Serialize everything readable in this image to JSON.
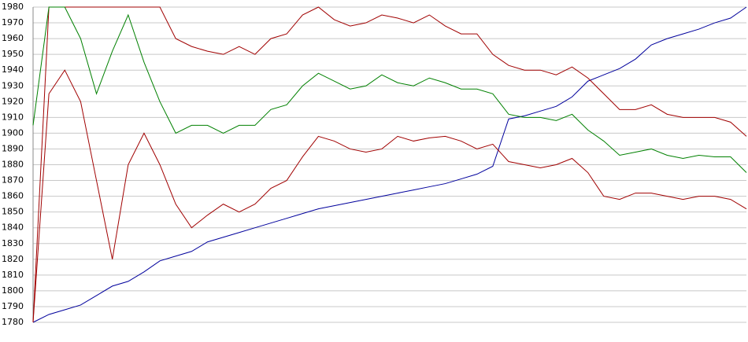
{
  "chart_data": {
    "type": "line",
    "categories": [
      null,
      null,
      null,
      null,
      null,
      null,
      null,
      null,
      null,
      null,
      null,
      null,
      null,
      null,
      null,
      null,
      null,
      null,
      null,
      null,
      null,
      null,
      null,
      null,
      null,
      null,
      null,
      null,
      null,
      null,
      null,
      null,
      null,
      null,
      null,
      null,
      null,
      null,
      null,
      null,
      null,
      null,
      null,
      null,
      null,
      null
    ],
    "series": [
      {
        "color": "#00009c",
        "values": [
          1780,
          1785,
          1788,
          1791,
          1797,
          1803,
          1806,
          1812,
          1819,
          1822,
          1825,
          1831,
          1834,
          1837,
          1840,
          1843,
          1846,
          1849,
          1852,
          1854,
          1856,
          1858,
          1860,
          1862,
          1864,
          1866,
          1868,
          1871,
          1874,
          1879,
          1909,
          1911,
          1914,
          1917,
          1923,
          1933,
          1937,
          1941,
          1947,
          1956,
          1960,
          1963,
          1966,
          1970,
          1973,
          1980
        ]
      },
      {
        "color": "#a00000",
        "values": [
          1780,
          1980,
          1980,
          1980,
          1980,
          1980,
          1980,
          1980,
          1980,
          1960,
          1955,
          1952,
          1950,
          1955,
          1950,
          1960,
          1963,
          1975,
          1980,
          1972,
          1968,
          1970,
          1975,
          1973,
          1970,
          1975,
          1968,
          1963,
          1963,
          1950,
          1943,
          1940,
          1940,
          1937,
          1942,
          1935,
          1925,
          1915,
          1915,
          1918,
          1912,
          1910,
          1910,
          1910,
          1907,
          1898
        ]
      },
      {
        "color": "#008000",
        "values": [
          1905,
          1980,
          1980,
          1960,
          1925,
          1952,
          1975,
          1945,
          1920,
          1900,
          1905,
          1905,
          1900,
          1905,
          1905,
          1915,
          1918,
          1930,
          1938,
          1933,
          1928,
          1930,
          1937,
          1932,
          1930,
          1935,
          1932,
          1928,
          1928,
          1925,
          1912,
          1910,
          1910,
          1908,
          1912,
          1902,
          1895,
          1886,
          1888,
          1890,
          1886,
          1884,
          1886,
          1885,
          1885,
          1875
        ]
      },
      {
        "color": "#a00000",
        "values": [
          1780,
          1925,
          1940,
          1920,
          1870,
          1820,
          1880,
          1900,
          1880,
          1855,
          1840,
          1848,
          1855,
          1850,
          1855,
          1865,
          1870,
          1885,
          1898,
          1895,
          1890,
          1888,
          1890,
          1898,
          1895,
          1897,
          1898,
          1895,
          1890,
          1893,
          1882,
          1880,
          1878,
          1880,
          1884,
          1875,
          1860,
          1858,
          1862,
          1862,
          1860,
          1858,
          1860,
          1860,
          1858,
          1852
        ]
      }
    ],
    "ylim": [
      1780,
      1980
    ],
    "yticks": [
      1780,
      1790,
      1800,
      1810,
      1820,
      1830,
      1840,
      1850,
      1860,
      1870,
      1880,
      1890,
      1900,
      1910,
      1920,
      1930,
      1940,
      1950,
      1960,
      1970,
      1980
    ],
    "grid": true
  }
}
